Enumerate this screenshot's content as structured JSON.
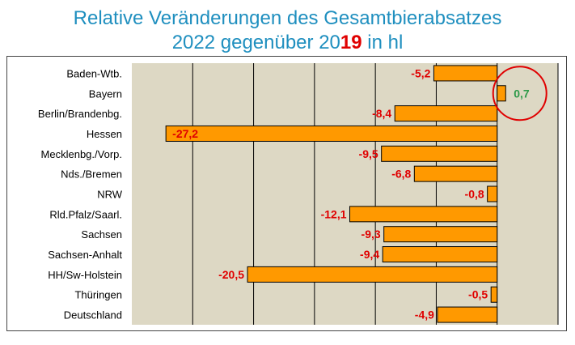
{
  "title_line1": "Relative Veränderungen des Gesamtbierabsatzes",
  "title_line2": {
    "prefix": "2022 gegenüber 20",
    "highlight": "19",
    "suffix": " in hl"
  },
  "colors": {
    "title": "#1f8fbf",
    "bar_fill": "#ff9900",
    "bar_stroke": "#000000",
    "plot_bg": "#ddd8c4",
    "negative_label": "#e00000",
    "positive_label": "#2e9a4a",
    "highlight_circle": "#e00000"
  },
  "chart_data": {
    "type": "bar",
    "orientation": "horizontal",
    "categories": [
      "Baden-Wtb.",
      "Bayern",
      "Berlin/Brandenbg.",
      "Hessen",
      "Mecklenbg./Vorp.",
      "Nds./Bremen",
      "NRW",
      "Rld.Pfalz/Saarl.",
      "Sachsen",
      "Sachsen-Anhalt",
      "HH/Sw-Holstein",
      "Thüringen",
      "Deutschland"
    ],
    "values": [
      -5.2,
      0.7,
      -8.4,
      -27.2,
      -9.5,
      -6.8,
      -0.8,
      -12.1,
      -9.3,
      -9.4,
      -20.5,
      -0.5,
      -4.9
    ],
    "value_labels": [
      "-5,2",
      "0,7",
      "-8,4",
      "-27,2",
      "-9,5",
      "-6,8",
      "-0,8",
      "-12,1",
      "-9,3",
      "-9,4",
      "-20,5",
      "-0,5",
      "-4,9"
    ],
    "xlim": [
      -30,
      5
    ],
    "grid": true,
    "gridline_values": [
      -25,
      -20,
      -15,
      -10,
      -5,
      0,
      5
    ],
    "highlighted_category": "Bayern",
    "title": "Relative Veränderungen des Gesamtbierabsatzes 2022 gegenüber 2019 in hl",
    "xlabel": "",
    "ylabel": ""
  }
}
